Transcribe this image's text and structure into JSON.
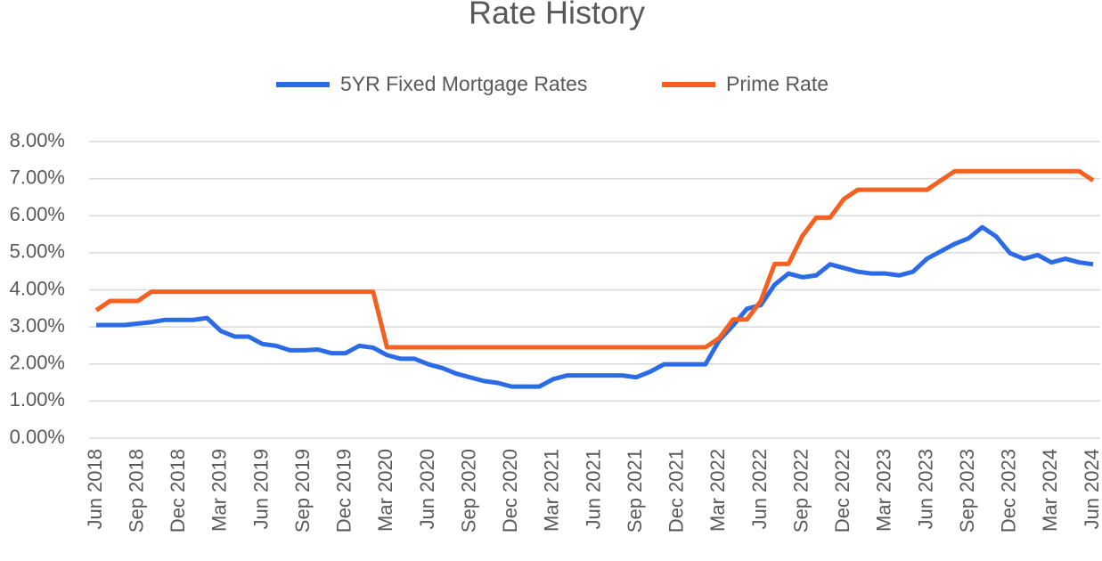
{
  "chart_data": {
    "type": "line",
    "title": "Rate History",
    "categories": [
      "Jun 2018",
      null,
      null,
      "Sep 2018",
      null,
      null,
      "Dec 2018",
      null,
      null,
      "Mar 2019",
      null,
      null,
      "Jun 2019",
      null,
      null,
      "Sep 2019",
      null,
      null,
      "Dec 2019",
      null,
      null,
      "Mar 2020",
      null,
      null,
      "Jun 2020",
      null,
      null,
      "Sep 2020",
      null,
      null,
      "Dec 2020",
      null,
      null,
      "Mar 2021",
      null,
      null,
      "Jun 2021",
      null,
      null,
      "Sep 2021",
      null,
      null,
      "Dec 2021",
      null,
      null,
      "Mar 2022",
      null,
      null,
      "Jun 2022",
      null,
      null,
      "Sep 2022",
      null,
      null,
      "Dec 2022",
      null,
      null,
      "Mar 2023",
      null,
      null,
      "Jun 2023",
      null,
      null,
      "Sep 2023",
      null,
      null,
      "Dec 2023",
      null,
      null,
      "Mar 2024",
      null,
      null,
      "Jun 2024"
    ],
    "series": [
      {
        "name": "5YR Fixed Mortgage Rates",
        "color": "#2b6be6",
        "values": [
          3.05,
          3.05,
          3.05,
          3.09,
          3.13,
          3.19,
          3.19,
          3.19,
          3.24,
          2.89,
          2.74,
          2.74,
          2.54,
          2.49,
          2.37,
          2.37,
          2.39,
          2.29,
          2.29,
          2.49,
          2.44,
          2.24,
          2.14,
          2.14,
          1.99,
          1.89,
          1.74,
          1.64,
          1.54,
          1.49,
          1.39,
          1.39,
          1.39,
          1.59,
          1.69,
          1.69,
          1.69,
          1.69,
          1.69,
          1.64,
          1.79,
          1.99,
          1.99,
          1.99,
          1.99,
          2.64,
          3.04,
          3.49,
          3.59,
          4.14,
          4.44,
          4.34,
          4.39,
          4.69,
          4.59,
          4.49,
          4.44,
          4.44,
          4.39,
          4.49,
          4.84,
          5.04,
          5.24,
          5.39,
          5.69,
          5.44,
          4.99,
          4.84,
          4.94,
          4.74,
          4.84,
          4.74,
          4.69
        ]
      },
      {
        "name": "Prime Rate",
        "color": "#f4601f",
        "values": [
          3.45,
          3.7,
          3.7,
          3.7,
          3.95,
          3.95,
          3.95,
          3.95,
          3.95,
          3.95,
          3.95,
          3.95,
          3.95,
          3.95,
          3.95,
          3.95,
          3.95,
          3.95,
          3.95,
          3.95,
          3.95,
          2.45,
          2.45,
          2.45,
          2.45,
          2.45,
          2.45,
          2.45,
          2.45,
          2.45,
          2.45,
          2.45,
          2.45,
          2.45,
          2.45,
          2.45,
          2.45,
          2.45,
          2.45,
          2.45,
          2.45,
          2.45,
          2.45,
          2.45,
          2.45,
          2.7,
          3.2,
          3.2,
          3.7,
          4.7,
          4.7,
          5.45,
          5.95,
          5.95,
          6.45,
          6.7,
          6.7,
          6.7,
          6.7,
          6.7,
          6.7,
          6.95,
          7.2,
          7.2,
          7.2,
          7.2,
          7.2,
          7.2,
          7.2,
          7.2,
          7.2,
          7.2,
          6.95
        ]
      }
    ],
    "ylim": [
      0,
      8
    ],
    "yticks": [
      {
        "value": 0,
        "label": "0.00%"
      },
      {
        "value": 1,
        "label": "1.00%"
      },
      {
        "value": 2,
        "label": "2.00%"
      },
      {
        "value": 3,
        "label": "3.00%"
      },
      {
        "value": 4,
        "label": "4.00%"
      },
      {
        "value": 5,
        "label": "5.00%"
      },
      {
        "value": 6,
        "label": "6.00%"
      },
      {
        "value": 7,
        "label": "7.00%"
      },
      {
        "value": 8,
        "label": "8.00%"
      }
    ],
    "grid": true,
    "legend": "top"
  }
}
